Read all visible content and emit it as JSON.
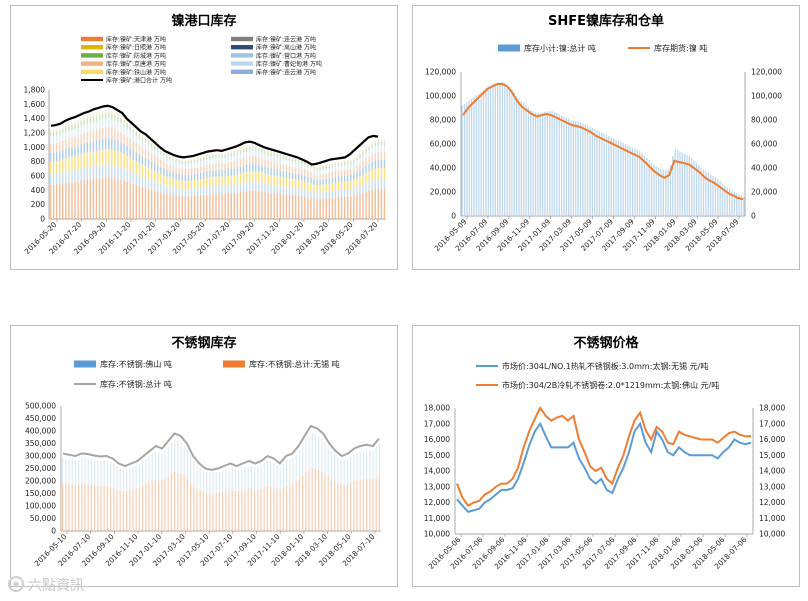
{
  "watermark": "六點資訊",
  "chart_data": [
    {
      "id": "nickel-port",
      "type": "area",
      "title": "镍港口库存",
      "ylim": [
        0,
        1800
      ],
      "yticks": [
        0,
        200,
        400,
        600,
        800,
        1000,
        1200,
        1400,
        1600,
        1800
      ],
      "xticks": [
        "2016-05-20",
        "2016-07-20",
        "2016-09-20",
        "2016-11-20",
        "2017-01-20",
        "2017-03-20",
        "2017-05-20",
        "2017-07-20",
        "2017-09-20",
        "2017-11-20",
        "2018-01-20",
        "2018-03-20",
        "2018-05-20",
        "2018-07-20"
      ],
      "legend": [
        {
          "name": "库存:镍矿:天津港 万吨",
          "color": "#ed7d31",
          "kind": "bar"
        },
        {
          "name": "库存:镍矿:连云港 万吨",
          "color": "#7f7f7f",
          "kind": "bar"
        },
        {
          "name": "库存:镍矿:日照港 万吨",
          "color": "#e0b400",
          "kind": "bar"
        },
        {
          "name": "库存:镍矿:岚山港 万吨",
          "color": "#2e4a7d",
          "kind": "bar"
        },
        {
          "name": "库存:镍矿:防城港 万吨",
          "color": "#70ad47",
          "kind": "bar"
        },
        {
          "name": "库存:镍矿:营口港 万吨",
          "color": "#9dc3e6",
          "kind": "bar"
        },
        {
          "name": "库存:镍矿:京唐港 万吨",
          "color": "#f4b183",
          "kind": "bar"
        },
        {
          "name": "库存:镍矿:曹妃甸港 万吨",
          "color": "#bdd7ee",
          "kind": "bar"
        },
        {
          "name": "库存:镍矿:铁山港 万吨",
          "color": "#ffd966",
          "kind": "bar"
        },
        {
          "name": "库存:镍矿:连云港 万吨",
          "color": "#8faadc",
          "kind": "bar"
        },
        {
          "name": "库存:镍矿:港口合计 万吨",
          "color": "#000000",
          "kind": "line"
        }
      ],
      "series": [
        {
          "name": "库存:镍矿:港口合计 万吨",
          "values": [
            1300,
            1310,
            1330,
            1370,
            1400,
            1420,
            1450,
            1480,
            1500,
            1530,
            1550,
            1570,
            1580,
            1560,
            1520,
            1480,
            1400,
            1340,
            1280,
            1220,
            1180,
            1120,
            1060,
            1000,
            950,
            920,
            890,
            870,
            860,
            870,
            880,
            900,
            920,
            940,
            950,
            960,
            950,
            970,
            990,
            1010,
            1040,
            1070,
            1080,
            1060,
            1030,
            1000,
            980,
            960,
            940,
            920,
            900,
            880,
            860,
            830,
            800,
            760,
            770,
            790,
            810,
            830,
            840,
            850,
            860,
            900,
            960,
            1020,
            1080,
            1140,
            1160,
            1150
          ]
        },
        {
          "name": "stack-top",
          "values": [
            1250,
            1260,
            1280,
            1320,
            1350,
            1360,
            1400,
            1430,
            1450,
            1470,
            1500,
            1520,
            1530,
            1500,
            1470,
            1430,
            1360,
            1300,
            1240,
            1180,
            1140,
            1080,
            1020,
            970,
            920,
            890,
            860,
            840,
            830,
            840,
            850,
            870,
            890,
            910,
            920,
            930,
            920,
            940,
            960,
            980,
            1010,
            1040,
            1050,
            1030,
            1000,
            970,
            950,
            930,
            910,
            890,
            870,
            850,
            830,
            800,
            770,
            730,
            740,
            760,
            780,
            800,
            810,
            820,
            830,
            870,
            930,
            990,
            1050,
            1100,
            1120,
            1110
          ]
        }
      ]
    },
    {
      "id": "shfe",
      "type": "bar+line",
      "title": "SHFE镍库存和仓单",
      "ylim": [
        0,
        120000
      ],
      "yticks_left": [
        "0",
        "20,000",
        "40,000",
        "60,000",
        "80,000",
        "100,000",
        "120,000"
      ],
      "yticks_right": [
        "0",
        "20,000",
        "40,000",
        "60,000",
        "80,000",
        "100,000",
        "120,000"
      ],
      "xticks": [
        "2016-05-09",
        "2016-07-09",
        "2016-09-09",
        "2016-11-09",
        "2017-01-09",
        "2017-03-09",
        "2017-05-09",
        "2017-07-09",
        "2017-09-09",
        "2017-11-09",
        "2018-01-09",
        "2018-03-09",
        "2018-05-09",
        "2018-07-09"
      ],
      "legend": [
        {
          "name": "库存小计:镍:总计 吨",
          "color": "#5b9bd5",
          "kind": "bar"
        },
        {
          "name": "库存期货:镍 吨",
          "color": "#ed7d31",
          "kind": "line"
        }
      ],
      "series": [
        {
          "name": "库存小计:镍:总计 吨",
          "values": [
            92000,
            95000,
            98000,
            101000,
            104000,
            107000,
            110000,
            111000,
            112000,
            110000,
            106000,
            100000,
            96000,
            92000,
            88000,
            86000,
            86000,
            87000,
            88000,
            86000,
            84000,
            82000,
            80000,
            79000,
            78000,
            76000,
            74000,
            72000,
            70000,
            68000,
            66000,
            64000,
            62000,
            60000,
            58000,
            56000,
            54000,
            50000,
            46000,
            42000,
            40000,
            38000,
            40000,
            56000,
            54000,
            52000,
            50000,
            46000,
            42000,
            38000,
            35000,
            33000,
            30000,
            26000,
            23000,
            20000,
            18000,
            16000
          ]
        },
        {
          "name": "库存期货:镍 吨",
          "values": [
            84000,
            90000,
            94000,
            98000,
            102000,
            106000,
            108000,
            110000,
            110000,
            108000,
            103000,
            96000,
            91000,
            88000,
            85000,
            83000,
            84000,
            85000,
            84000,
            82000,
            80000,
            78000,
            76000,
            75000,
            74000,
            72000,
            70000,
            67000,
            65000,
            63000,
            61000,
            59000,
            57000,
            55000,
            53000,
            51000,
            49000,
            45000,
            41000,
            37000,
            34000,
            32000,
            34000,
            46000,
            45000,
            44000,
            43000,
            40000,
            37000,
            33000,
            30000,
            28000,
            25000,
            22000,
            19000,
            17000,
            15000,
            14000
          ]
        }
      ]
    },
    {
      "id": "stainless-inv",
      "type": "bar+line",
      "title": "不锈钢库存",
      "ylim": [
        0,
        500000
      ],
      "yticks": [
        "0",
        "50,000",
        "100,000",
        "150,000",
        "200,000",
        "250,000",
        "300,000",
        "350,000",
        "400,000",
        "450,000",
        "500,000"
      ],
      "xticks": [
        "2016-05-10",
        "2016-07-10",
        "2016-09-10",
        "2016-11-10",
        "2017-01-10",
        "2017-03-10",
        "2017-05-10",
        "2017-07-10",
        "2017-09-10",
        "2017-11-10",
        "2018-01-10",
        "2018-03-10",
        "2018-05-10",
        "2018-07-10"
      ],
      "legend": [
        {
          "name": "库存:不锈钢:佛山 吨",
          "color": "#5b9bd5",
          "kind": "bar"
        },
        {
          "name": "库存:不锈钢:总计:无锡 吨",
          "color": "#ed7d31",
          "kind": "bar"
        },
        {
          "name": "库存:不锈钢:总计 吨",
          "color": "#a5a5a5",
          "kind": "line"
        }
      ],
      "series": [
        {
          "name": "库存:不锈钢:总计 吨",
          "values": [
            310000,
            305000,
            300000,
            310000,
            308000,
            302000,
            298000,
            300000,
            290000,
            270000,
            260000,
            270000,
            280000,
            300000,
            320000,
            340000,
            330000,
            360000,
            390000,
            380000,
            350000,
            300000,
            270000,
            250000,
            245000,
            250000,
            260000,
            270000,
            260000,
            270000,
            280000,
            270000,
            280000,
            300000,
            290000,
            270000,
            300000,
            310000,
            340000,
            380000,
            420000,
            410000,
            390000,
            350000,
            320000,
            300000,
            310000,
            330000,
            340000,
            345000,
            340000,
            370000
          ]
        },
        {
          "name": "库存:不锈钢:总计:无锡 吨",
          "values": [
            190000,
            188000,
            185000,
            190000,
            188000,
            184000,
            180000,
            182000,
            176000,
            165000,
            158000,
            165000,
            170000,
            182000,
            195000,
            206000,
            200000,
            218000,
            236000,
            230000,
            212000,
            182000,
            165000,
            152000,
            150000,
            152000,
            158000,
            165000,
            158000,
            165000,
            170000,
            165000,
            170000,
            182000,
            176000,
            165000,
            182000,
            188000,
            206000,
            230000,
            255000,
            248000,
            236000,
            212000,
            195000,
            182000,
            188000,
            200000,
            206000,
            210000,
            206000,
            225000
          ]
        }
      ]
    },
    {
      "id": "stainless-price",
      "type": "line",
      "title": "不锈钢价格",
      "ylim": [
        10000,
        18000
      ],
      "yticks": [
        "10,000",
        "11,000",
        "12,000",
        "13,000",
        "14,000",
        "15,000",
        "16,000",
        "17,000",
        "18,000"
      ],
      "xticks": [
        "2016-05-06",
        "2016-07-06",
        "2016-09-06",
        "2016-11-06",
        "2017-01-06",
        "2017-03-06",
        "2017-05-06",
        "2017-07-06",
        "2017-09-06",
        "2017-11-06",
        "2018-01-06",
        "2018-03-06",
        "2018-05-06",
        "2018-07-06"
      ],
      "legend": [
        {
          "name": "市场价:304L/NO.1热轧不锈钢板:3.0mm:太钢:无锡 元/吨",
          "color": "#5b9bd5",
          "kind": "line"
        },
        {
          "name": "市场价:304/2B冷轧不锈钢卷:2.0*1219mm:太钢:佛山 元/吨",
          "color": "#ed7d31",
          "kind": "line"
        }
      ],
      "series": [
        {
          "name": "市场价:304L/NO.1热轧不锈钢板:3.0mm:太钢:无锡 元/吨",
          "values": [
            12200,
            11800,
            11400,
            11500,
            11600,
            12000,
            12200,
            12500,
            12800,
            12800,
            12900,
            13500,
            14500,
            15600,
            16500,
            17000,
            16200,
            15500,
            15500,
            15500,
            15500,
            15800,
            14800,
            14200,
            13500,
            13200,
            13500,
            12800,
            12600,
            13500,
            14200,
            15200,
            16500,
            17000,
            15800,
            15200,
            16500,
            16000,
            15200,
            15000,
            15500,
            15200,
            15000,
            15000,
            15000,
            15000,
            15000,
            14800,
            15200,
            15500,
            16000,
            15800,
            15700,
            15800
          ]
        },
        {
          "name": "市场价:304/2B冷轧不锈钢卷:2.0*1219mm:太钢:佛山 元/吨",
          "values": [
            13200,
            12300,
            11800,
            12000,
            12100,
            12500,
            12700,
            13000,
            13200,
            13200,
            13500,
            14200,
            15500,
            16500,
            17300,
            18000,
            17500,
            17200,
            17400,
            17500,
            17200,
            17500,
            16000,
            15200,
            14300,
            14000,
            14200,
            13500,
            13200,
            14200,
            15000,
            16200,
            17200,
            17700,
            16600,
            16000,
            16800,
            16500,
            15800,
            15700,
            16500,
            16300,
            16200,
            16100,
            16000,
            16000,
            16000,
            15800,
            16100,
            16400,
            16500,
            16300,
            16200,
            16200
          ]
        }
      ]
    }
  ]
}
